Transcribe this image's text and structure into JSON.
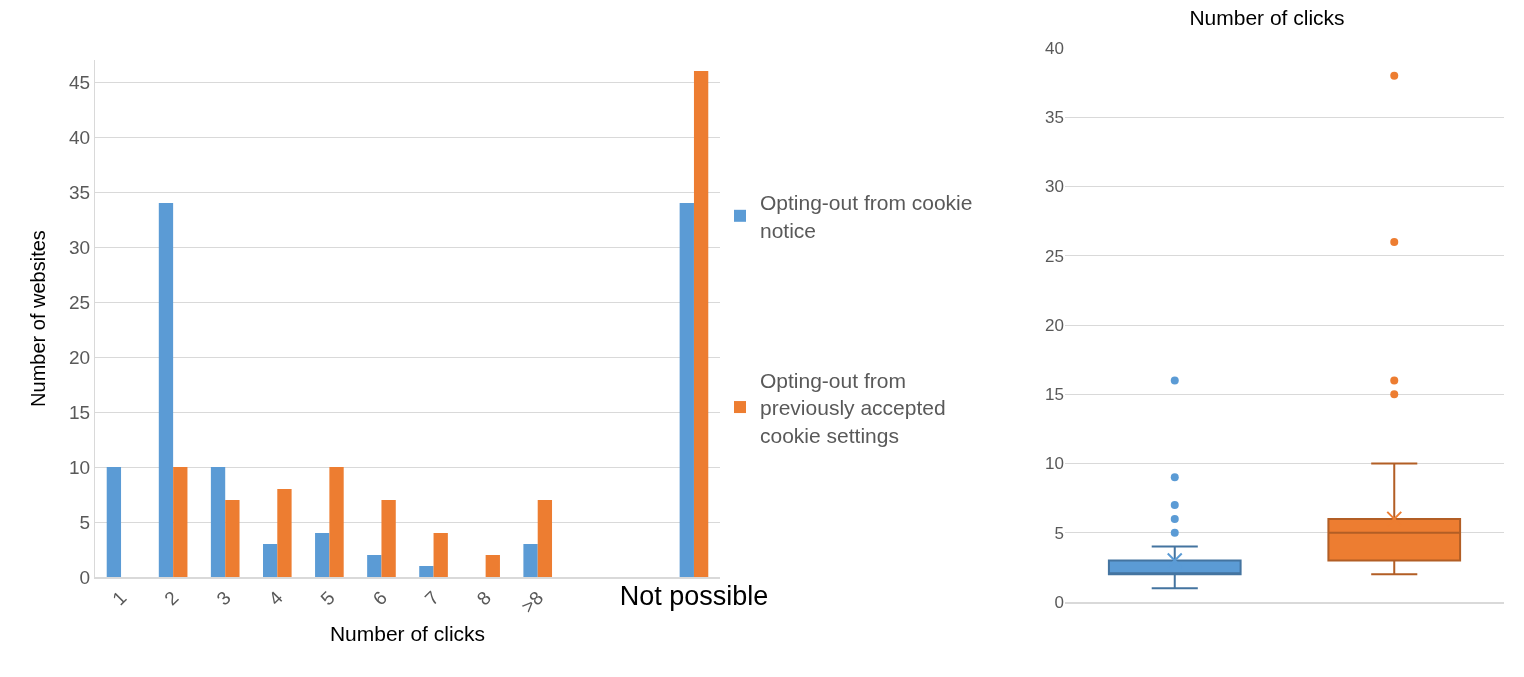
{
  "chart_data": [
    {
      "type": "bar",
      "xlabel": "Number of clicks",
      "ylabel": "Number of websites",
      "categories": [
        "1",
        "2",
        "3",
        "4",
        "5",
        "6",
        "7",
        "8",
        ">8",
        null,
        null,
        "Not possible"
      ],
      "series": [
        {
          "name": "Opting-out from cookie notice",
          "color": "#5b9bd5",
          "values": [
            10,
            34,
            10,
            3,
            4,
            2,
            1,
            0,
            3,
            null,
            null,
            34
          ]
        },
        {
          "name": "Opting-out from previously accepted cookie settings",
          "color": "#ed7d31",
          "values": [
            0,
            10,
            7,
            8,
            10,
            7,
            4,
            2,
            7,
            null,
            null,
            46
          ]
        }
      ],
      "ylim": [
        0,
        47
      ],
      "yticks": [
        0,
        5,
        10,
        15,
        20,
        25,
        30,
        35,
        40,
        45
      ],
      "grid": "y",
      "legend": "right"
    },
    {
      "type": "box",
      "title": "Number of clicks",
      "categories": [
        null,
        null
      ],
      "colors": [
        "#5b9bd5",
        "#ed7d31"
      ],
      "boxes": [
        {
          "low": 1,
          "q1": 2,
          "median": 2,
          "q3": 3,
          "high": 4,
          "mean": 3,
          "outliers": [
            5,
            6,
            7,
            9,
            16
          ]
        },
        {
          "low": 2,
          "q1": 3,
          "median": 5,
          "q3": 6,
          "high": 10,
          "mean": 6,
          "outliers": [
            15,
            16,
            26,
            38
          ]
        }
      ],
      "ylim": [
        0,
        40
      ],
      "yticks": [
        0,
        5,
        10,
        15,
        20,
        25,
        30,
        35,
        40
      ],
      "grid": "y"
    }
  ]
}
